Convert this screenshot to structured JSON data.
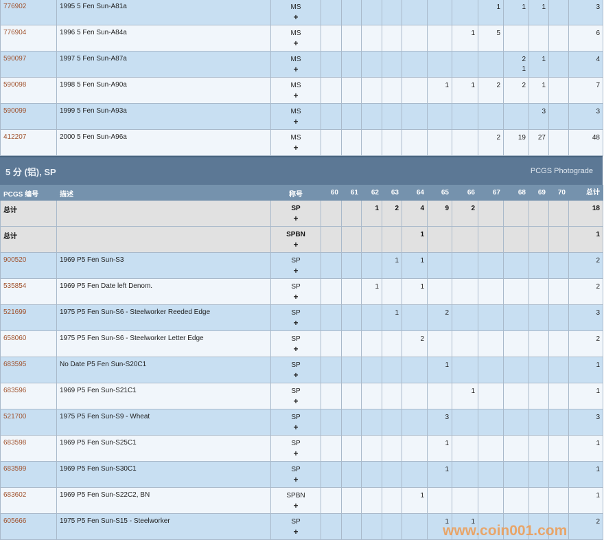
{
  "grades": [
    "60",
    "61",
    "62",
    "63",
    "64",
    "65",
    "66",
    "67",
    "68",
    "69",
    "70"
  ],
  "top_rows": [
    {
      "pcgs": "776902",
      "desc": "1995 5 Fen Sun-A81a",
      "grade": "MS",
      "counts": [
        "",
        "",
        "",
        "",
        "",
        "",
        "",
        "1",
        "1",
        "1",
        ""
      ],
      "plus": [],
      "total": "3"
    },
    {
      "pcgs": "776904",
      "desc": "1996 5 Fen Sun-A84a",
      "grade": "MS",
      "counts": [
        "",
        "",
        "",
        "",
        "",
        "",
        "1",
        "5",
        "",
        "",
        ""
      ],
      "plus": [],
      "total": "6"
    },
    {
      "pcgs": "590097",
      "desc": "1997 5 Fen Sun-A87a",
      "grade": "MS",
      "counts": [
        "",
        "",
        "",
        "",
        "",
        "",
        "",
        "",
        "2",
        "1",
        ""
      ],
      "plus": [
        "",
        "",
        "",
        "",
        "",
        "",
        "",
        "",
        "1",
        "",
        ""
      ],
      "total": "4"
    },
    {
      "pcgs": "590098",
      "desc": "1998 5 Fen Sun-A90a",
      "grade": "MS",
      "counts": [
        "",
        "",
        "",
        "",
        "",
        "1",
        "1",
        "2",
        "2",
        "1",
        ""
      ],
      "plus": [],
      "total": "7"
    },
    {
      "pcgs": "590099",
      "desc": "1999 5 Fen Sun-A93a",
      "grade": "MS",
      "counts": [
        "",
        "",
        "",
        "",
        "",
        "",
        "",
        "",
        "",
        "3",
        ""
      ],
      "plus": [],
      "total": "3"
    },
    {
      "pcgs": "412207",
      "desc": "2000 5 Fen Sun-A96a",
      "grade": "MS",
      "counts": [
        "",
        "",
        "",
        "",
        "",
        "",
        "",
        "2",
        "19",
        "27",
        ""
      ],
      "plus": [],
      "total": "48"
    }
  ],
  "section": {
    "title": "5 分 (铝), SP",
    "right_label": "PCGS Photograde",
    "headers": {
      "pcgs": "PCGS 编号",
      "desc": "描述",
      "grade": "称号",
      "total": "总计"
    },
    "total_rows": [
      {
        "label": "总计",
        "grade": "SP",
        "counts": [
          "",
          "",
          "1",
          "2",
          "4",
          "9",
          "2",
          "",
          "",
          "",
          ""
        ],
        "total": "18"
      },
      {
        "label": "总计",
        "grade": "SPBN",
        "counts": [
          "",
          "",
          "",
          "",
          "1",
          "",
          "",
          "",
          "",
          "",
          ""
        ],
        "total": "1"
      }
    ],
    "rows": [
      {
        "pcgs": "900520",
        "desc": "1969 P5 Fen Sun-S3",
        "grade": "SP",
        "counts": [
          "",
          "",
          "",
          "1",
          "1",
          "",
          "",
          "",
          "",
          "",
          ""
        ],
        "total": "2"
      },
      {
        "pcgs": "535854",
        "desc": "1969 P5 Fen Date left Denom.",
        "grade": "SP",
        "counts": [
          "",
          "",
          "1",
          "",
          "1",
          "",
          "",
          "",
          "",
          "",
          ""
        ],
        "total": "2"
      },
      {
        "pcgs": "521699",
        "desc": "1975 P5 Fen Sun-S6 - Steelworker Reeded Edge",
        "grade": "SP",
        "counts": [
          "",
          "",
          "",
          "1",
          "",
          "2",
          "",
          "",
          "",
          "",
          ""
        ],
        "total": "3"
      },
      {
        "pcgs": "658060",
        "desc": "1975 P5 Fen Sun-S6 - Steelworker Letter Edge",
        "grade": "SP",
        "counts": [
          "",
          "",
          "",
          "",
          "2",
          "",
          "",
          "",
          "",
          "",
          ""
        ],
        "total": "2"
      },
      {
        "pcgs": "683595",
        "desc": "No Date P5 Fen Sun-S20C1",
        "grade": "SP",
        "counts": [
          "",
          "",
          "",
          "",
          "",
          "1",
          "",
          "",
          "",
          "",
          ""
        ],
        "total": "1"
      },
      {
        "pcgs": "683596",
        "desc": "1969 P5 Fen Sun-S21C1",
        "grade": "SP",
        "counts": [
          "",
          "",
          "",
          "",
          "",
          "",
          "1",
          "",
          "",
          "",
          ""
        ],
        "total": "1"
      },
      {
        "pcgs": "521700",
        "desc": "1975 P5 Fen Sun-S9 - Wheat",
        "grade": "SP",
        "counts": [
          "",
          "",
          "",
          "",
          "",
          "3",
          "",
          "",
          "",
          "",
          ""
        ],
        "total": "3"
      },
      {
        "pcgs": "683598",
        "desc": "1969 P5 Fen Sun-S25C1",
        "grade": "SP",
        "counts": [
          "",
          "",
          "",
          "",
          "",
          "1",
          "",
          "",
          "",
          "",
          ""
        ],
        "total": "1"
      },
      {
        "pcgs": "683599",
        "desc": "1969 P5 Fen Sun-S30C1",
        "grade": "SP",
        "counts": [
          "",
          "",
          "",
          "",
          "",
          "1",
          "",
          "",
          "",
          "",
          ""
        ],
        "total": "1"
      },
      {
        "pcgs": "683602",
        "desc": "1969 P5 Fen Sun-S22C2, BN",
        "grade": "SPBN",
        "counts": [
          "",
          "",
          "",
          "",
          "1",
          "",
          "",
          "",
          "",
          "",
          ""
        ],
        "total": "1"
      },
      {
        "pcgs": "605666",
        "desc": "1975 P5 Fen Sun-S15 - Steelworker",
        "grade": "SP",
        "counts": [
          "",
          "",
          "",
          "",
          "",
          "1",
          "1",
          "",
          "",
          "",
          ""
        ],
        "total": "2"
      }
    ]
  },
  "plus_symbol": "+",
  "watermark": "www.coin001.com",
  "colors": {
    "row_blue": "#c8dff2",
    "row_light": "#f1f6fb",
    "total_gray": "#e1e1e1",
    "section_header": "#5c7895",
    "column_header": "#7592ad",
    "link": "#a0522d",
    "watermark": "#f0963f"
  }
}
